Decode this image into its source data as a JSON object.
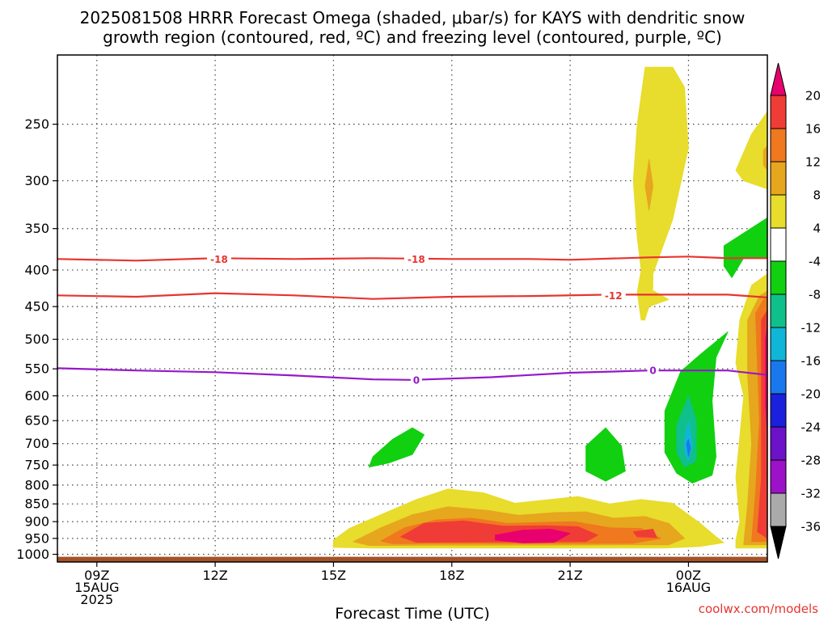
{
  "chart_data": {
    "type": "heatmap",
    "title_lines": [
      "2025081508 HRRR Forecast Omega (shaded, μbar/s) for KAYS with dendritic snow",
      "growth region (contoured, red, ºC) and freezing level (contoured, purple, ºC)"
    ],
    "xlabel": "Forecast Time (UTC)",
    "ylabel": "",
    "x_ticks": [
      {
        "h": 9,
        "lines": [
          "09Z",
          "15AUG",
          "2025"
        ]
      },
      {
        "h": 12,
        "lines": [
          "12Z"
        ]
      },
      {
        "h": 15,
        "lines": [
          "15Z"
        ]
      },
      {
        "h": 18,
        "lines": [
          "18Z"
        ]
      },
      {
        "h": 21,
        "lines": [
          "21Z"
        ]
      },
      {
        "h": 24,
        "lines": [
          "00Z",
          "16AUG"
        ]
      }
    ],
    "x_range": [
      8,
      26
    ],
    "y_range_hPa": [
      200,
      1025
    ],
    "y_ticks": [
      250,
      300,
      350,
      400,
      450,
      500,
      550,
      600,
      650,
      700,
      750,
      800,
      850,
      900,
      950,
      1000
    ],
    "colorbar": {
      "levels": [
        20,
        16,
        12,
        8,
        4,
        -4,
        -8,
        -12,
        -16,
        -20,
        -24,
        -28,
        -32,
        -36
      ],
      "colors": [
        "#e8006f",
        "#f03c36",
        "#f0781e",
        "#e6a61e",
        "#e8dc2c",
        "#ffffff",
        "#10d010",
        "#10c08a",
        "#10b6d8",
        "#1a78ee",
        "#1a20dc",
        "#6c12c8",
        "#9c12c8",
        "#aaaaaa",
        "#000000"
      ]
    },
    "contours": [
      {
        "kind": "temperature",
        "value": -18,
        "color": "#e8342f",
        "points": [
          [
            8,
            386
          ],
          [
            10,
            388
          ],
          [
            12,
            385
          ],
          [
            14,
            386
          ],
          [
            16,
            385
          ],
          [
            18,
            386
          ],
          [
            20,
            386
          ],
          [
            21,
            387
          ],
          [
            23,
            384
          ],
          [
            24,
            383
          ],
          [
            25,
            385
          ],
          [
            26,
            385
          ]
        ],
        "labels": [
          [
            12.1,
            386,
            "-18"
          ],
          [
            17.1,
            386,
            "-18"
          ]
        ]
      },
      {
        "kind": "temperature",
        "value": -12,
        "color": "#e8342f",
        "points": [
          [
            8,
            434
          ],
          [
            10,
            436
          ],
          [
            12,
            431
          ],
          [
            14,
            434
          ],
          [
            16,
            439
          ],
          [
            18,
            436
          ],
          [
            20,
            435
          ],
          [
            22,
            433
          ],
          [
            24,
            433
          ],
          [
            25,
            433
          ],
          [
            26,
            437
          ]
        ],
        "labels": [
          [
            22.1,
            434,
            "-12"
          ]
        ]
      },
      {
        "kind": "freezing",
        "value": 0,
        "color": "#9618c8",
        "points": [
          [
            8,
            549
          ],
          [
            10,
            553
          ],
          [
            12,
            556
          ],
          [
            14,
            562
          ],
          [
            16,
            569
          ],
          [
            17,
            570
          ],
          [
            19,
            565
          ],
          [
            21,
            557
          ],
          [
            23,
            553
          ],
          [
            24,
            553
          ],
          [
            25,
            553
          ],
          [
            26,
            561
          ]
        ],
        "labels": [
          [
            17.1,
            570,
            "0"
          ],
          [
            23.1,
            553,
            "0"
          ]
        ]
      }
    ],
    "omega_regions": [
      {
        "value": "4 to 8",
        "color": "#e8dc2c",
        "points": [
          [
            23.6,
            208
          ],
          [
            23.9,
            222
          ],
          [
            24.0,
            270
          ],
          [
            23.6,
            340
          ],
          [
            23.1,
            405
          ],
          [
            23.1,
            425
          ],
          [
            22.9,
            430
          ],
          [
            22.9,
            470
          ],
          [
            22.8,
            470
          ],
          [
            22.7,
            430
          ],
          [
            22.8,
            400
          ],
          [
            22.7,
            360
          ],
          [
            22.6,
            300
          ],
          [
            22.7,
            250
          ],
          [
            22.9,
            208
          ]
        ]
      },
      {
        "value": "4 to 8",
        "color": "#e8dc2c",
        "points": [
          [
            23.0,
            424
          ],
          [
            23.5,
            440
          ],
          [
            23.0,
            450
          ],
          [
            22.9,
            468
          ],
          [
            22.8,
            440
          ]
        ]
      },
      {
        "value": "8 to 12",
        "color": "#e6a61e",
        "points": [
          [
            23.0,
            280
          ],
          [
            23.1,
            305
          ],
          [
            23.0,
            330
          ],
          [
            22.9,
            305
          ]
        ]
      },
      {
        "value": "4 to 8",
        "color": "#e8dc2c",
        "points": [
          [
            25.2,
            290
          ],
          [
            25.6,
            258
          ],
          [
            26,
            240
          ],
          [
            26,
            308
          ],
          [
            25.4,
            300
          ]
        ]
      },
      {
        "value": "8 to 12",
        "color": "#e6a61e",
        "points": [
          [
            25.9,
            272
          ],
          [
            26,
            268
          ],
          [
            26,
            290
          ],
          [
            25.9,
            285
          ]
        ]
      },
      {
        "value": "-4 to -8",
        "color": "#10d010",
        "points": [
          [
            24.9,
            370
          ],
          [
            26,
            338
          ],
          [
            26,
            385
          ],
          [
            25.4,
            385
          ],
          [
            25.1,
            410
          ],
          [
            24.9,
            395
          ]
        ]
      },
      {
        "value": "-4 to -8",
        "color": "#10d010",
        "points": [
          [
            23.4,
            630
          ],
          [
            23.8,
            555
          ],
          [
            24.3,
            525
          ],
          [
            25.0,
            488
          ],
          [
            24.7,
            530
          ],
          [
            24.6,
            610
          ],
          [
            24.7,
            730
          ],
          [
            24.6,
            775
          ],
          [
            24.1,
            795
          ],
          [
            23.7,
            770
          ],
          [
            23.4,
            720
          ]
        ]
      },
      {
        "value": "-8 to -12",
        "color": "#10c08a",
        "points": [
          [
            23.7,
            660
          ],
          [
            24.0,
            600
          ],
          [
            24.2,
            650
          ],
          [
            24.2,
            740
          ],
          [
            23.9,
            755
          ],
          [
            23.7,
            720
          ]
        ]
      },
      {
        "value": "-12 to -16",
        "color": "#10b6d8",
        "points": [
          [
            23.9,
            690
          ],
          [
            24.0,
            650
          ],
          [
            24.1,
            700
          ],
          [
            24.0,
            740
          ],
          [
            23.9,
            720
          ]
        ]
      },
      {
        "value": "-16 to -20",
        "color": "#1a78ee",
        "points": [
          [
            23.95,
            700
          ],
          [
            24.0,
            690
          ],
          [
            24.05,
            710
          ],
          [
            24.0,
            730
          ]
        ]
      },
      {
        "value": "-4 to -8",
        "color": "#10d010",
        "points": [
          [
            16.0,
            730
          ],
          [
            16.5,
            690
          ],
          [
            17.0,
            665
          ],
          [
            17.3,
            680
          ],
          [
            17.0,
            725
          ],
          [
            16.4,
            745
          ],
          [
            15.9,
            755
          ]
        ]
      },
      {
        "value": "-4 to -8",
        "color": "#10d010",
        "points": [
          [
            21.4,
            705
          ],
          [
            21.9,
            665
          ],
          [
            22.3,
            705
          ],
          [
            22.4,
            765
          ],
          [
            21.9,
            790
          ],
          [
            21.4,
            765
          ]
        ]
      },
      {
        "value": "4 to 8",
        "color": "#e8dc2c",
        "points": [
          [
            15.0,
            955
          ],
          [
            15.4,
            920
          ],
          [
            16.2,
            880
          ],
          [
            17.1,
            838
          ],
          [
            17.9,
            810
          ],
          [
            18.8,
            820
          ],
          [
            19.6,
            848
          ],
          [
            20.5,
            838
          ],
          [
            21.2,
            830
          ],
          [
            22.0,
            850
          ],
          [
            22.8,
            838
          ],
          [
            23.6,
            848
          ],
          [
            24.3,
            905
          ],
          [
            24.7,
            945
          ],
          [
            24.9,
            963
          ],
          [
            24.3,
            975
          ],
          [
            23.4,
            980
          ],
          [
            16.0,
            980
          ],
          [
            15.0,
            978
          ]
        ]
      },
      {
        "value": "8 to 12",
        "color": "#e6a61e",
        "points": [
          [
            15.5,
            960
          ],
          [
            16.2,
            918
          ],
          [
            17.0,
            880
          ],
          [
            17.9,
            858
          ],
          [
            18.9,
            868
          ],
          [
            19.7,
            882
          ],
          [
            20.6,
            874
          ],
          [
            21.4,
            872
          ],
          [
            22.1,
            890
          ],
          [
            22.9,
            885
          ],
          [
            23.5,
            905
          ],
          [
            23.9,
            950
          ],
          [
            23.5,
            970
          ],
          [
            15.9,
            972
          ]
        ]
      },
      {
        "value": "12 to 16",
        "color": "#f0781e",
        "points": [
          [
            16.2,
            958
          ],
          [
            16.8,
            918
          ],
          [
            17.6,
            895
          ],
          [
            18.5,
            890
          ],
          [
            19.4,
            905
          ],
          [
            20.3,
            902
          ],
          [
            21.1,
            900
          ],
          [
            22.0,
            918
          ],
          [
            22.8,
            920
          ],
          [
            23.3,
            950
          ],
          [
            22.6,
            965
          ],
          [
            16.5,
            966
          ]
        ]
      },
      {
        "value": "16 to 20",
        "color": "#f03c36",
        "points": [
          [
            16.7,
            945
          ],
          [
            17.3,
            905
          ],
          [
            18.3,
            898
          ],
          [
            19.3,
            913
          ],
          [
            20.4,
            912
          ],
          [
            21.2,
            915
          ],
          [
            21.7,
            940
          ],
          [
            21.4,
            960
          ],
          [
            17.1,
            962
          ]
        ]
      },
      {
        "value": "20+",
        "color": "#e8006f",
        "points": [
          [
            19.1,
            940
          ],
          [
            19.8,
            925
          ],
          [
            20.5,
            922
          ],
          [
            21.0,
            935
          ],
          [
            20.6,
            962
          ],
          [
            19.8,
            964
          ],
          [
            19.1,
            955
          ]
        ]
      },
      {
        "value": "16 to 20",
        "color": "#f03c36",
        "points": [
          [
            22.6,
            930
          ],
          [
            23.1,
            922
          ],
          [
            23.2,
            948
          ],
          [
            22.7,
            945
          ]
        ]
      },
      {
        "value": "4 to 8",
        "color": "#e8dc2c",
        "points": [
          [
            25.3,
            470
          ],
          [
            25.6,
            420
          ],
          [
            26,
            405
          ],
          [
            26,
            980
          ],
          [
            25.2,
            980
          ],
          [
            25.2,
            955
          ],
          [
            25.3,
            900
          ],
          [
            25.2,
            780
          ],
          [
            25.4,
            600
          ],
          [
            25.2,
            540
          ]
        ]
      },
      {
        "value": "8 to 12",
        "color": "#e6a61e",
        "points": [
          [
            25.5,
            470
          ],
          [
            25.8,
            435
          ],
          [
            26,
            428
          ],
          [
            26,
            970
          ],
          [
            25.4,
            970
          ],
          [
            25.5,
            850
          ],
          [
            25.6,
            700
          ],
          [
            25.5,
            560
          ]
        ]
      },
      {
        "value": "12 to 16",
        "color": "#f0781e",
        "points": [
          [
            25.7,
            460
          ],
          [
            25.9,
            440
          ],
          [
            26,
            438
          ],
          [
            26,
            960
          ],
          [
            25.6,
            960
          ],
          [
            25.7,
            820
          ],
          [
            25.8,
            650
          ]
        ]
      },
      {
        "value": "16 to 20",
        "color": "#f03c36",
        "points": [
          [
            25.85,
            470
          ],
          [
            26,
            455
          ],
          [
            26,
            950
          ],
          [
            25.75,
            930
          ],
          [
            25.85,
            780
          ]
        ]
      },
      {
        "value": "20+",
        "color": "#e8006f",
        "points": [
          [
            25.95,
            500
          ],
          [
            26,
            480
          ],
          [
            26,
            680
          ],
          [
            25.95,
            620
          ]
        ]
      }
    ],
    "ground": {
      "color": "#a65228",
      "from_hPa": 1008
    },
    "grid": true,
    "credit": "coolwx.com/models"
  }
}
